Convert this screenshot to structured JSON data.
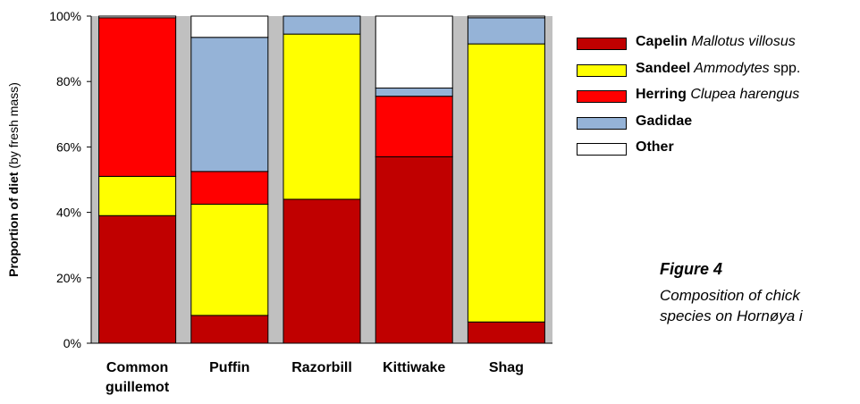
{
  "chart_data": {
    "type": "bar",
    "stacked": true,
    "categories": [
      "Common guillemot",
      "Puffin",
      "Razorbill",
      "Kittiwake",
      "Shag"
    ],
    "category_lines": [
      [
        "Common",
        "guillemot"
      ],
      [
        "Puffin"
      ],
      [
        "Razorbill"
      ],
      [
        "Kittiwake"
      ],
      [
        "Shag"
      ]
    ],
    "series": [
      {
        "name": "Capelin",
        "values": [
          39,
          8.5,
          44,
          57,
          6.5
        ]
      },
      {
        "name": "Sandeel",
        "values": [
          12,
          34,
          50.5,
          0,
          85
        ]
      },
      {
        "name": "Herring",
        "values": [
          48.5,
          10,
          0,
          18.5,
          0
        ]
      },
      {
        "name": "Gadidae",
        "values": [
          0,
          41,
          5.5,
          2.5,
          8
        ]
      },
      {
        "name": "Other",
        "values": [
          0.5,
          6.5,
          0,
          22,
          0.5
        ]
      }
    ],
    "colors": {
      "Capelin": "#c00000",
      "Sandeel": "#ffff00",
      "Herring": "#ff0000",
      "Gadidae": "#95b3d7",
      "Other": "#ffffff",
      "plot_background": "#c0c0c0"
    },
    "ylabel_bold": "Proportion of diet",
    "ylabel_rest": "(by fresh mass)",
    "ylim": [
      0,
      100
    ],
    "yticks": [
      "0%",
      "20%",
      "40%",
      "60%",
      "80%",
      "100%"
    ],
    "legend_placement": "right",
    "grid": false
  },
  "legend": [
    {
      "name": "Capelin",
      "sci": "Mallotus villosus",
      "suffix": ""
    },
    {
      "name": "Sandeel",
      "sci": "Ammodytes",
      "suffix": " spp."
    },
    {
      "name": "Herring",
      "sci": "Clupea harengus",
      "suffix": ""
    },
    {
      "name": "Gadidae",
      "sci": "",
      "suffix": ""
    },
    {
      "name": "Other",
      "sci": "",
      "suffix": ""
    }
  ],
  "caption": {
    "figure": "Figure 4",
    "line1": "Composition of chick",
    "line2": "species on Hornøya i"
  }
}
